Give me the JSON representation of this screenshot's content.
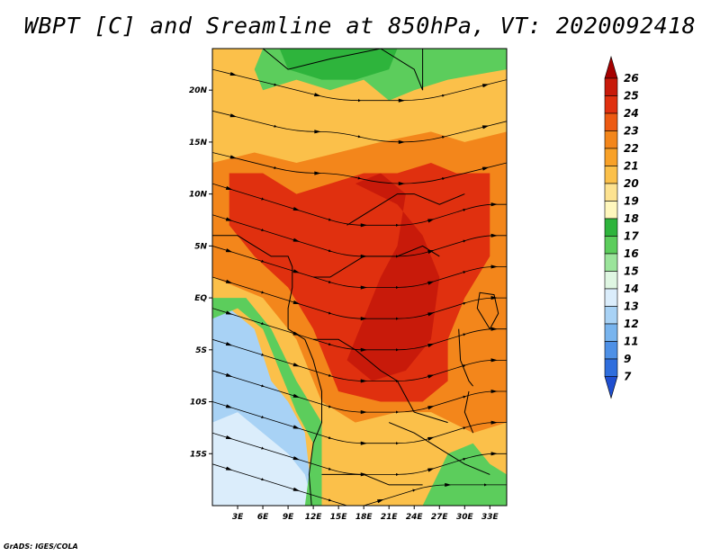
{
  "title": "WBPT [C] and Sreamline at 850hPa, VT: 2020092418",
  "credit": "GrADS: IGES/COLA",
  "map": {
    "lon_range": [
      0,
      35
    ],
    "lat_range": [
      -20,
      24
    ],
    "lat_ticks": [
      {
        "value": 20,
        "label": "20N"
      },
      {
        "value": 15,
        "label": "15N"
      },
      {
        "value": 10,
        "label": "10N"
      },
      {
        "value": 5,
        "label": "5N"
      },
      {
        "value": 0,
        "label": "EQ"
      },
      {
        "value": -5,
        "label": "5S"
      },
      {
        "value": -10,
        "label": "10S"
      },
      {
        "value": -15,
        "label": "15S"
      }
    ],
    "lon_ticks": [
      {
        "value": 3,
        "label": "3E"
      },
      {
        "value": 6,
        "label": "6E"
      },
      {
        "value": 9,
        "label": "9E"
      },
      {
        "value": 12,
        "label": "12E"
      },
      {
        "value": 15,
        "label": "15E"
      },
      {
        "value": 18,
        "label": "18E"
      },
      {
        "value": 21,
        "label": "21E"
      },
      {
        "value": 24,
        "label": "24E"
      },
      {
        "value": 27,
        "label": "27E"
      },
      {
        "value": 30,
        "label": "30E"
      },
      {
        "value": 33,
        "label": "33E"
      }
    ]
  },
  "colorbar": {
    "labels": [
      "26",
      "25",
      "24",
      "23",
      "22",
      "21",
      "20",
      "19",
      "18",
      "17",
      "16",
      "15",
      "14",
      "13",
      "12",
      "11",
      "9",
      "7"
    ],
    "colors": [
      "#a50000",
      "#c81a0a",
      "#e0300f",
      "#ed5a12",
      "#f3861b",
      "#f8a128",
      "#fbc04a",
      "#fde290",
      "#fff7bd",
      "#2eb43c",
      "#5ccd5c",
      "#9be49b",
      "#dff6e2",
      "#dbedfb",
      "#a8d2f5",
      "#78b4ee",
      "#4e90e6",
      "#2f6edd",
      "#1f4fd0"
    ]
  },
  "fields": {
    "regions": [
      {
        "name": "cold-southwest",
        "color": "#a8d2f5",
        "points": [
          [
            0,
            -20
          ],
          [
            0,
            -2
          ],
          [
            2,
            -1
          ],
          [
            5,
            -3
          ],
          [
            7,
            -8
          ],
          [
            9,
            -10
          ],
          [
            11,
            -13
          ],
          [
            12,
            -20
          ]
        ]
      },
      {
        "name": "cool-southwest-core",
        "color": "#dbedfb",
        "points": [
          [
            0,
            -20
          ],
          [
            0,
            -12
          ],
          [
            3,
            -11
          ],
          [
            6,
            -13
          ],
          [
            9,
            -15
          ],
          [
            11,
            -17
          ],
          [
            12,
            -20
          ]
        ]
      },
      {
        "name": "green-south",
        "color": "#5ccd5c",
        "points": [
          [
            0,
            -2
          ],
          [
            3,
            -1
          ],
          [
            6,
            -3
          ],
          [
            8,
            -7
          ],
          [
            10,
            -11
          ],
          [
            12,
            -14
          ],
          [
            11,
            -20
          ],
          [
            13,
            -20
          ],
          [
            13,
            -12
          ],
          [
            10,
            -8
          ],
          [
            7,
            -3
          ],
          [
            4,
            0
          ],
          [
            0,
            0
          ]
        ]
      },
      {
        "name": "green-north",
        "color": "#5ccd5c",
        "points": [
          [
            6,
            24
          ],
          [
            35,
            24
          ],
          [
            35,
            22
          ],
          [
            28,
            21
          ],
          [
            24,
            20
          ],
          [
            21,
            19
          ],
          [
            18,
            21
          ],
          [
            14,
            20
          ],
          [
            10,
            21
          ],
          [
            6,
            20
          ],
          [
            5,
            22
          ]
        ]
      },
      {
        "name": "green-north-dark",
        "color": "#2eb43c",
        "points": [
          [
            8,
            24
          ],
          [
            22,
            24
          ],
          [
            21,
            22
          ],
          [
            17,
            21
          ],
          [
            13,
            21
          ],
          [
            9,
            22
          ]
        ]
      },
      {
        "name": "green-southeast",
        "color": "#5ccd5c",
        "points": [
          [
            25,
            -20
          ],
          [
            28,
            -15
          ],
          [
            31,
            -14
          ],
          [
            33,
            -16
          ],
          [
            35,
            -17
          ],
          [
            35,
            -20
          ]
        ]
      },
      {
        "name": "orange-band",
        "color": "#f3861b",
        "points": [
          [
            0,
            13
          ],
          [
            5,
            14
          ],
          [
            10,
            13
          ],
          [
            15,
            14
          ],
          [
            20,
            15
          ],
          [
            26,
            16
          ],
          [
            30,
            15
          ],
          [
            35,
            16
          ],
          [
            35,
            -12
          ],
          [
            31,
            -13
          ],
          [
            26,
            -11
          ],
          [
            22,
            -11
          ],
          [
            17,
            -12
          ],
          [
            13,
            -10
          ],
          [
            10,
            -4
          ],
          [
            6,
            0
          ],
          [
            0,
            2
          ]
        ]
      },
      {
        "name": "red-core",
        "color": "#e0300f",
        "points": [
          [
            2,
            12
          ],
          [
            6,
            12
          ],
          [
            10,
            10
          ],
          [
            14,
            11
          ],
          [
            18,
            12
          ],
          [
            22,
            12
          ],
          [
            26,
            13
          ],
          [
            29,
            12
          ],
          [
            33,
            12
          ],
          [
            33,
            4
          ],
          [
            30,
            0
          ],
          [
            28,
            -4
          ],
          [
            28,
            -8
          ],
          [
            25,
            -10
          ],
          [
            20,
            -10
          ],
          [
            15,
            -9
          ],
          [
            12,
            -3
          ],
          [
            9,
            1
          ],
          [
            5,
            4
          ],
          [
            2,
            7
          ]
        ]
      },
      {
        "name": "dark-red-core",
        "color": "#c81a0a",
        "points": [
          [
            17,
            11
          ],
          [
            20,
            12
          ],
          [
            23,
            10
          ],
          [
            22,
            5
          ],
          [
            20,
            2
          ],
          [
            18,
            -2
          ],
          [
            16,
            -6
          ],
          [
            19,
            -8
          ],
          [
            23,
            -7
          ],
          [
            26,
            -4
          ],
          [
            27,
            2
          ],
          [
            25,
            6
          ],
          [
            22,
            9
          ]
        ]
      }
    ],
    "streamlines": [
      [
        [
          0,
          22
        ],
        [
          5,
          21
        ],
        [
          10,
          20
        ],
        [
          15,
          19
        ],
        [
          20,
          19
        ],
        [
          25,
          19
        ],
        [
          30,
          20
        ],
        [
          35,
          21
        ]
      ],
      [
        [
          0,
          18
        ],
        [
          5,
          17
        ],
        [
          10,
          16
        ],
        [
          15,
          16
        ],
        [
          20,
          15
        ],
        [
          25,
          15
        ],
        [
          30,
          16
        ],
        [
          35,
          17
        ]
      ],
      [
        [
          0,
          14
        ],
        [
          5,
          13
        ],
        [
          10,
          12
        ],
        [
          15,
          12
        ],
        [
          20,
          11
        ],
        [
          25,
          11
        ],
        [
          30,
          12
        ],
        [
          35,
          13
        ]
      ],
      [
        [
          0,
          11
        ],
        [
          4,
          10
        ],
        [
          8,
          9
        ],
        [
          12,
          8
        ],
        [
          16,
          7
        ],
        [
          20,
          7
        ],
        [
          24,
          7
        ],
        [
          28,
          8
        ],
        [
          32,
          9
        ],
        [
          35,
          9
        ]
      ],
      [
        [
          0,
          8
        ],
        [
          4,
          7
        ],
        [
          8,
          6
        ],
        [
          12,
          5
        ],
        [
          16,
          4
        ],
        [
          20,
          4
        ],
        [
          24,
          4
        ],
        [
          28,
          5
        ],
        [
          32,
          6
        ],
        [
          35,
          6
        ]
      ],
      [
        [
          0,
          5
        ],
        [
          4,
          4
        ],
        [
          8,
          3
        ],
        [
          12,
          2
        ],
        [
          16,
          1
        ],
        [
          20,
          1
        ],
        [
          24,
          1
        ],
        [
          28,
          2
        ],
        [
          32,
          3
        ],
        [
          35,
          3
        ]
      ],
      [
        [
          0,
          2
        ],
        [
          4,
          1
        ],
        [
          8,
          0
        ],
        [
          12,
          -1
        ],
        [
          16,
          -2
        ],
        [
          20,
          -2
        ],
        [
          24,
          -2
        ],
        [
          28,
          -1
        ],
        [
          32,
          0
        ],
        [
          35,
          0
        ]
      ],
      [
        [
          0,
          -1
        ],
        [
          4,
          -2
        ],
        [
          8,
          -3
        ],
        [
          12,
          -4
        ],
        [
          16,
          -5
        ],
        [
          20,
          -5
        ],
        [
          24,
          -5
        ],
        [
          28,
          -4
        ],
        [
          32,
          -3
        ],
        [
          35,
          -3
        ]
      ],
      [
        [
          0,
          -4
        ],
        [
          4,
          -5
        ],
        [
          8,
          -6
        ],
        [
          12,
          -7
        ],
        [
          16,
          -8
        ],
        [
          20,
          -8
        ],
        [
          24,
          -8
        ],
        [
          28,
          -7
        ],
        [
          32,
          -6
        ],
        [
          35,
          -6
        ]
      ],
      [
        [
          0,
          -7
        ],
        [
          4,
          -8
        ],
        [
          8,
          -9
        ],
        [
          12,
          -10
        ],
        [
          16,
          -11
        ],
        [
          20,
          -11
        ],
        [
          24,
          -11
        ],
        [
          28,
          -10
        ],
        [
          32,
          -9
        ],
        [
          35,
          -9
        ]
      ],
      [
        [
          0,
          -10
        ],
        [
          4,
          -11
        ],
        [
          8,
          -12
        ],
        [
          12,
          -13
        ],
        [
          16,
          -14
        ],
        [
          20,
          -14
        ],
        [
          24,
          -14
        ],
        [
          28,
          -13
        ],
        [
          32,
          -12
        ],
        [
          35,
          -12
        ]
      ],
      [
        [
          0,
          -13
        ],
        [
          4,
          -14
        ],
        [
          8,
          -15
        ],
        [
          12,
          -16
        ],
        [
          16,
          -17
        ],
        [
          20,
          -17
        ],
        [
          24,
          -17
        ],
        [
          28,
          -16
        ],
        [
          32,
          -15
        ],
        [
          35,
          -15
        ]
      ],
      [
        [
          0,
          -16
        ],
        [
          4,
          -17
        ],
        [
          8,
          -18
        ],
        [
          12,
          -19
        ],
        [
          16,
          -20
        ]
      ],
      [
        [
          18,
          -20
        ],
        [
          22,
          -19
        ],
        [
          26,
          -18
        ],
        [
          30,
          -18
        ],
        [
          35,
          -18
        ]
      ]
    ],
    "coastlines": [
      [
        [
          0,
          6
        ],
        [
          3,
          6
        ],
        [
          5,
          5
        ],
        [
          7,
          4
        ],
        [
          9,
          4
        ],
        [
          9.5,
          3
        ],
        [
          9.5,
          1
        ],
        [
          9,
          -1
        ],
        [
          9,
          -3
        ],
        [
          11,
          -4
        ],
        [
          12,
          -6
        ],
        [
          13,
          -9
        ],
        [
          13,
          -12
        ],
        [
          12,
          -14
        ],
        [
          11.5,
          -17
        ],
        [
          11.8,
          -20
        ]
      ],
      [
        [
          33,
          -3
        ],
        [
          31.5,
          -1
        ],
        [
          31.8,
          0.5
        ],
        [
          33.5,
          0.3
        ],
        [
          34,
          -1.5
        ],
        [
          33,
          -3
        ]
      ],
      [
        [
          29.3,
          -3
        ],
        [
          29.5,
          -6
        ],
        [
          30.5,
          -8
        ],
        [
          31,
          -8.5
        ]
      ],
      [
        [
          30.5,
          -9
        ],
        [
          30,
          -11
        ],
        [
          31,
          -13
        ]
      ],
      [
        [
          3,
          24
        ],
        [
          6,
          24
        ],
        [
          9,
          22
        ],
        [
          14,
          23
        ],
        [
          20,
          24
        ],
        [
          24,
          22
        ],
        [
          25,
          20
        ],
        [
          25,
          24
        ]
      ],
      [
        [
          16,
          7
        ],
        [
          18,
          8
        ],
        [
          22,
          10
        ],
        [
          24,
          10
        ],
        [
          27,
          9
        ],
        [
          30,
          10
        ]
      ],
      [
        [
          12,
          2
        ],
        [
          14,
          2
        ],
        [
          16,
          3
        ],
        [
          18,
          4
        ],
        [
          22,
          4
        ],
        [
          25,
          5
        ],
        [
          27,
          4
        ]
      ],
      [
        [
          12,
          -4
        ],
        [
          15,
          -4
        ],
        [
          17,
          -5
        ],
        [
          20,
          -7
        ],
        [
          22,
          -8
        ],
        [
          24,
          -11
        ],
        [
          28,
          -12
        ]
      ],
      [
        [
          13,
          -17
        ],
        [
          18,
          -17
        ],
        [
          21,
          -18
        ],
        [
          25,
          -18
        ]
      ],
      [
        [
          21,
          -12
        ],
        [
          24,
          -13
        ],
        [
          28,
          -15
        ],
        [
          30,
          -16
        ],
        [
          33,
          -17
        ]
      ]
    ]
  }
}
